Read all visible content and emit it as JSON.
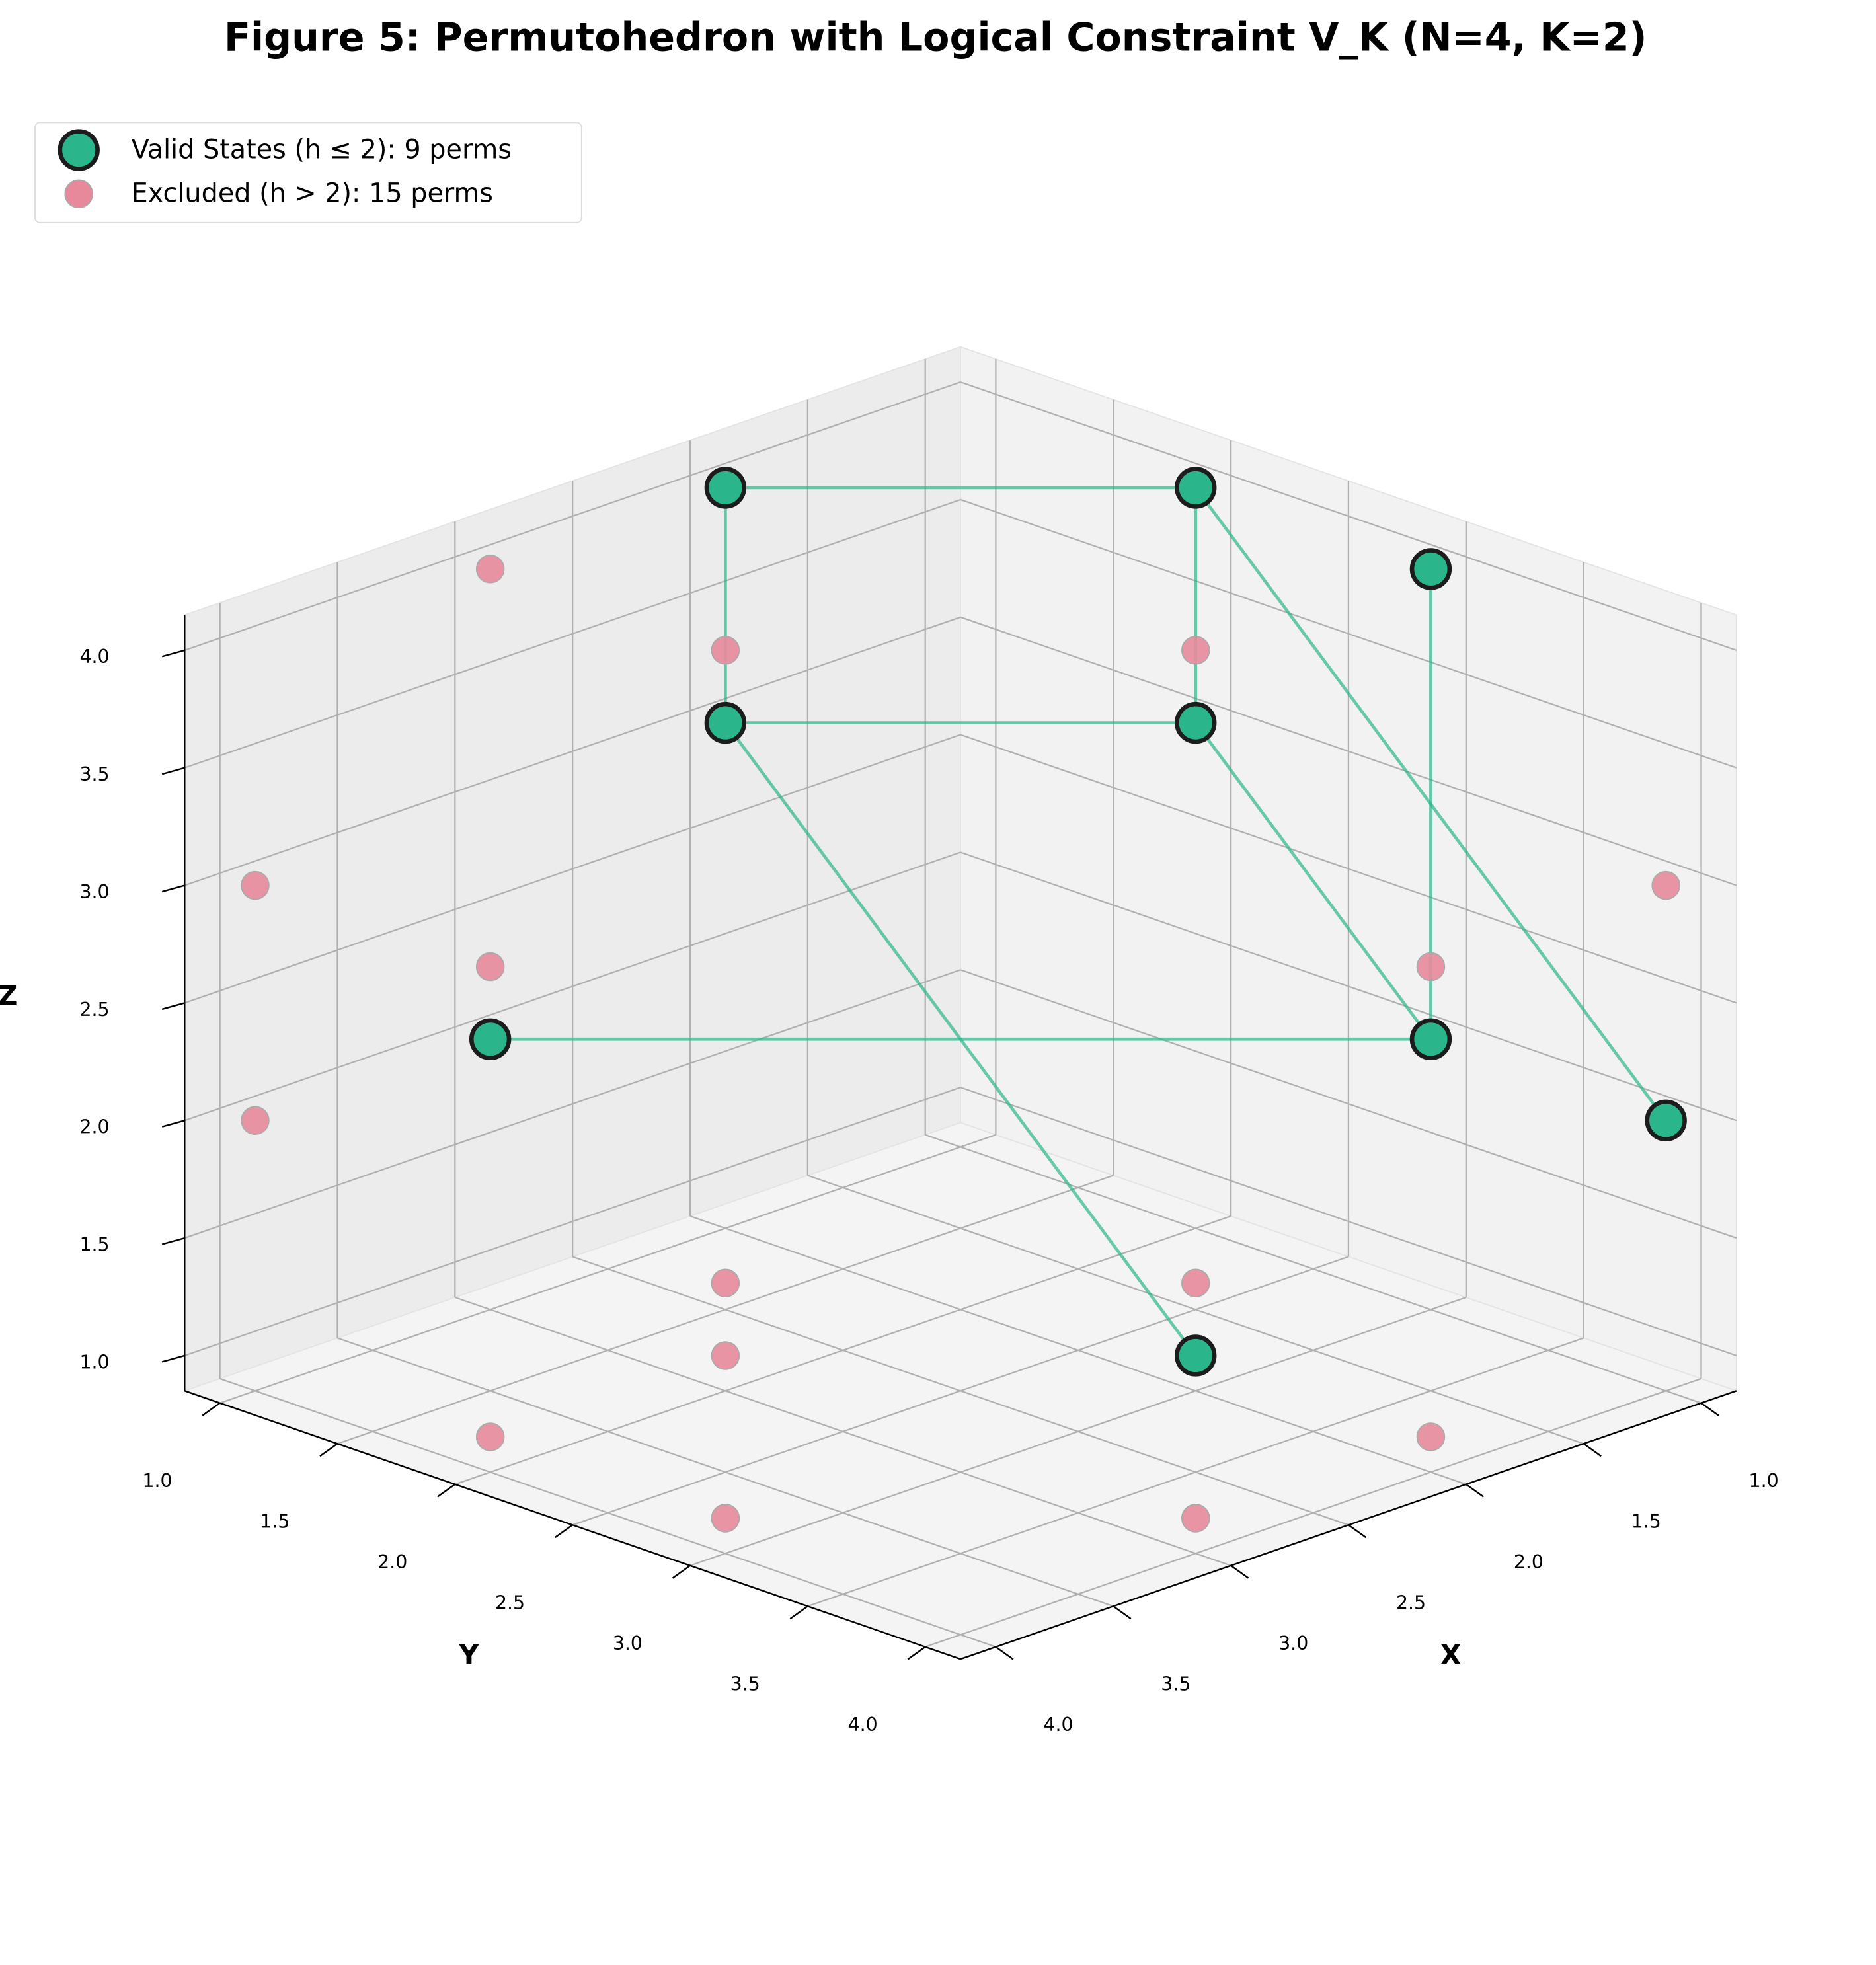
{
  "chart_data": {
    "type": "scatter3d",
    "title": "Figure 5: Permutohedron with Logical Constraint V_K (N=4, K=2)",
    "x_label": "X",
    "y_label": "Y",
    "z_label": "Z",
    "xlim": [
      0.85,
      4.15
    ],
    "ylim": [
      0.85,
      4.15
    ],
    "zlim": [
      0.85,
      4.15
    ],
    "xticks": [
      {
        "value": 1,
        "label": "1.0"
      },
      {
        "value": 1.5,
        "label": "1.5"
      },
      {
        "value": 2,
        "label": "2.0"
      },
      {
        "value": 2.5,
        "label": "2.5"
      },
      {
        "value": 3,
        "label": "3.0"
      },
      {
        "value": 3.5,
        "label": "3.5"
      },
      {
        "value": 4,
        "label": "4.0"
      }
    ],
    "yticks": [
      {
        "value": 1,
        "label": "1.0"
      },
      {
        "value": 1.5,
        "label": "1.5"
      },
      {
        "value": 2,
        "label": "2.0"
      },
      {
        "value": 2.5,
        "label": "2.5"
      },
      {
        "value": 3,
        "label": "3.0"
      },
      {
        "value": 3.5,
        "label": "3.5"
      },
      {
        "value": 4,
        "label": "4.0"
      }
    ],
    "zticks": [
      {
        "value": 1,
        "label": "1.0"
      },
      {
        "value": 1.5,
        "label": "1.5"
      },
      {
        "value": 2,
        "label": "2.0"
      },
      {
        "value": 2.5,
        "label": "2.5"
      },
      {
        "value": 3,
        "label": "3.0"
      },
      {
        "value": 3.5,
        "label": "3.5"
      },
      {
        "value": 4,
        "label": "4.0"
      }
    ],
    "grid": true,
    "legend": "upper left",
    "series": [
      {
        "name": "Valid States (h ≤ 2): 9 perms",
        "color": "#2bb58a",
        "x": [
          1,
          2,
          1,
          1,
          2,
          3,
          1,
          1,
          2
        ],
        "y": [
          2,
          1,
          3,
          2,
          3,
          1,
          3,
          4,
          1
        ],
        "z": [
          3,
          3,
          2,
          4,
          1,
          2,
          4,
          2,
          4
        ],
        "edges": [
          [
            3,
            8
          ],
          [
            8,
            1
          ],
          [
            1,
            0
          ],
          [
            3,
            0
          ],
          [
            3,
            7
          ],
          [
            6,
            2
          ],
          [
            0,
            2
          ],
          [
            5,
            2
          ],
          [
            1,
            4
          ]
        ]
      },
      {
        "name": "Excluded (h > 2): 15 perms",
        "color": "#e8899b",
        "x": [
          1,
          2,
          2,
          2,
          3,
          3,
          3,
          3,
          3,
          4,
          4,
          4,
          4,
          4,
          4
        ],
        "y": [
          4,
          3,
          4,
          4,
          1,
          2,
          2,
          4,
          4,
          1,
          1,
          2,
          2,
          3,
          3
        ],
        "z": [
          3,
          4,
          1,
          3,
          4,
          1,
          4,
          1,
          2,
          2,
          3,
          1,
          3,
          1,
          2
        ]
      }
    ]
  }
}
